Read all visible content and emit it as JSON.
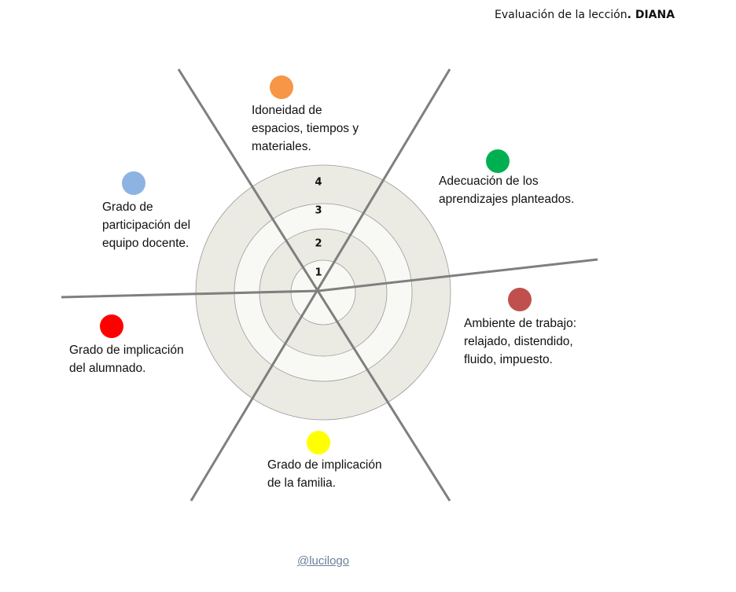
{
  "title": {
    "text": "Evaluación de la lección",
    "bold": ". DIANA"
  },
  "rings": [
    "1",
    "2",
    "3",
    "4"
  ],
  "categories": [
    {
      "lines": [
        "Idoneidad de",
        "espacios, tiempos y",
        "materiales."
      ],
      "color": "#f79646"
    },
    {
      "lines": [
        "Adecuación de los",
        "aprendizajes planteados."
      ],
      "color": "#00b050"
    },
    {
      "lines": [
        "Ambiente de trabajo:",
        "relajado, distendido,",
        "fluido, impuesto."
      ],
      "color": "#c0504d"
    },
    {
      "lines": [
        "Grado de implicación",
        "de la familia."
      ],
      "color": "#ffff00"
    },
    {
      "lines": [
        "Grado de implicación",
        "del alumnado."
      ],
      "color": "#ff0000"
    },
    {
      "lines": [
        "Grado de",
        "participación del",
        "equipo docente."
      ],
      "color": "#8db3e2"
    }
  ],
  "footer": {
    "link": "@lucilogo"
  }
}
